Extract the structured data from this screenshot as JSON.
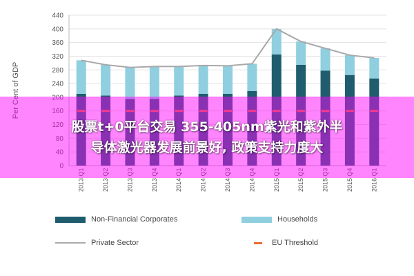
{
  "chart_data": {
    "type": "bar",
    "ylabel": "Per Cent of GDP",
    "ylim": [
      0,
      440
    ],
    "yticks": [
      0,
      40,
      80,
      120,
      160,
      200,
      240,
      280,
      320,
      360,
      400,
      440
    ],
    "grid": true,
    "categories": [
      "2013 Q1",
      "2013 Q2",
      "2013 Q3",
      "2013 Q4",
      "2014 Q1",
      "2014 Q2",
      "2014 Q3",
      "2014 Q4",
      "2015 Q1",
      "2015 Q2",
      "2015 Q3",
      "2015 Q4",
      "2016 Q1"
    ],
    "series": [
      {
        "name": "Non-Financial Corporates",
        "kind": "stacked-bar",
        "color": "#1f5d6e",
        "values": [
          210,
          205,
          195,
          195,
          205,
          210,
          210,
          218,
          325,
          295,
          278,
          265,
          255
        ]
      },
      {
        "name": "Households",
        "kind": "stacked-bar",
        "color": "#8fcfe0",
        "values": [
          98,
          90,
          92,
          95,
          85,
          83,
          82,
          80,
          75,
          68,
          65,
          58,
          60
        ]
      },
      {
        "name": "Private Sector",
        "kind": "line",
        "color": "#a8a8a8",
        "values": [
          308,
          295,
          287,
          290,
          290,
          293,
          292,
          298,
          400,
          363,
          343,
          323,
          315
        ]
      },
      {
        "name": "EU Threshold",
        "kind": "dashed-line",
        "color": "#f26b2a",
        "values": [
          160,
          160,
          160,
          160,
          160,
          160,
          160,
          160,
          160,
          160,
          160,
          160,
          160
        ]
      }
    ]
  },
  "legend": {
    "nfc": "Non-Financial Corporates",
    "households": "Households",
    "private": "Private Sector",
    "eu": "EU Threshold"
  },
  "overlay": {
    "background": "#ff00ff",
    "line1": "股票t+0平台交易 355-405nm紫光和紫外半",
    "line2": "导体激光器发展前景好, 政策支持力度大"
  }
}
